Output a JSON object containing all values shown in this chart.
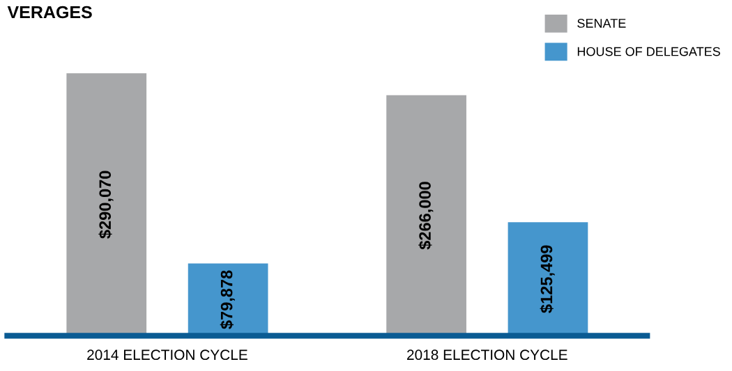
{
  "chart_data": {
    "type": "bar",
    "title": "VERAGES",
    "categories": [
      "2014 ELECTION CYCLE",
      "2018 ELECTION CYCLE"
    ],
    "series": [
      {
        "name": "SENATE",
        "color": "#a7a8aa",
        "values": [
          290070,
          266000
        ],
        "value_labels": [
          "$290,070",
          "$266,000"
        ]
      },
      {
        "name": "HOUSE OF DELEGATES",
        "color": "#4596cd",
        "values": [
          79878,
          125499
        ],
        "value_labels": [
          "$79,878",
          "$125,499"
        ]
      }
    ],
    "legend": "top right",
    "grid": false
  }
}
